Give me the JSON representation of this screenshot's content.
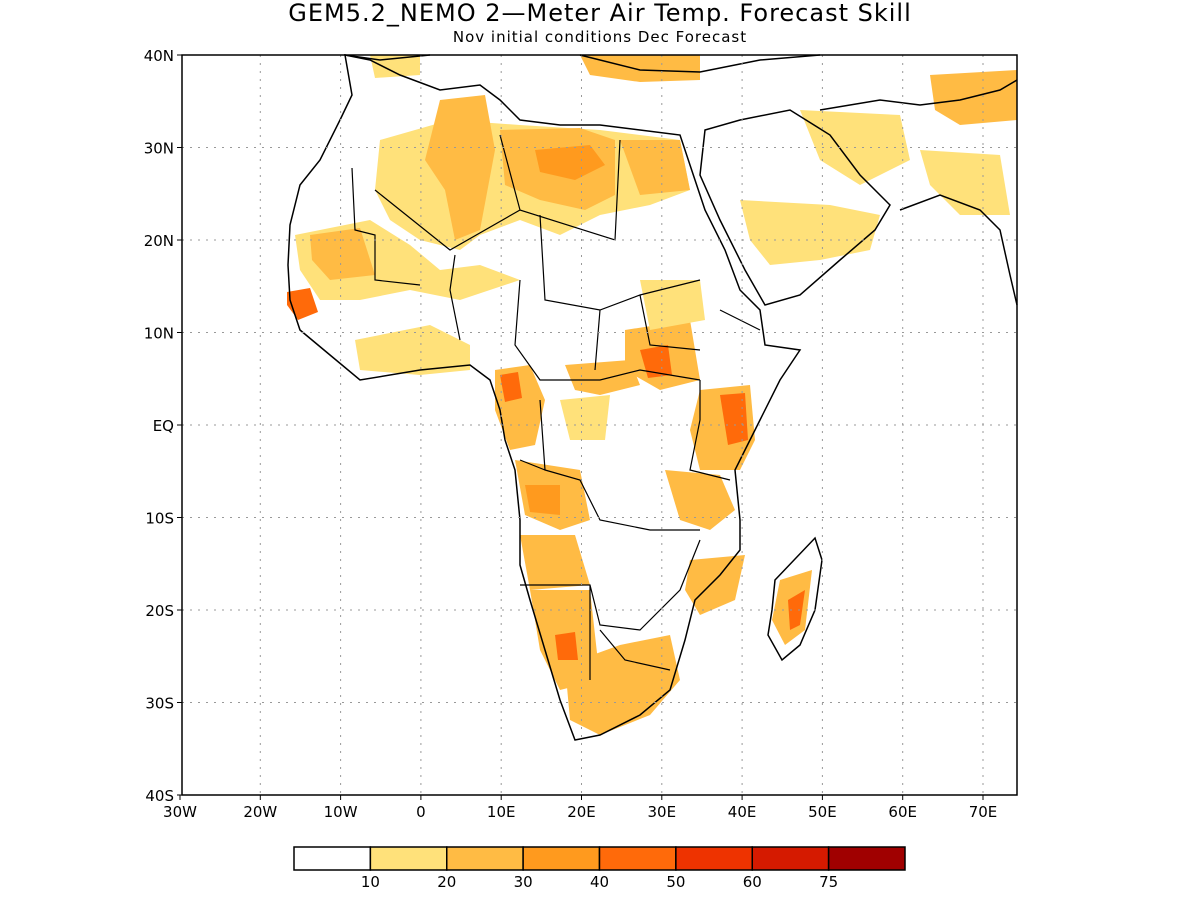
{
  "title": "GEM5.2_NEMO 2—Meter Air Temp. Forecast Skill",
  "subtitle": "Nov initial conditions  Dec Forecast",
  "axes": {
    "lon_labels": [
      "30W",
      "20W",
      "10W",
      "0",
      "10E",
      "20E",
      "30E",
      "40E",
      "50E",
      "60E",
      "70E"
    ],
    "lat_labels": [
      "40N",
      "30N",
      "20N",
      "10N",
      "EQ",
      "10S",
      "20S",
      "30S",
      "40S"
    ],
    "grid": true
  },
  "legend": {
    "labels": [
      "10",
      "20",
      "30",
      "40",
      "50",
      "60",
      "75"
    ],
    "colors": [
      "#ffffff",
      "#ffe17a",
      "#ffbb44",
      "#ff9a1e",
      "#ff6a0a",
      "#ee3300",
      "#d51a00",
      "#a00000"
    ]
  },
  "colors": {
    "land_outline": "#000000",
    "grid": "#999999"
  }
}
